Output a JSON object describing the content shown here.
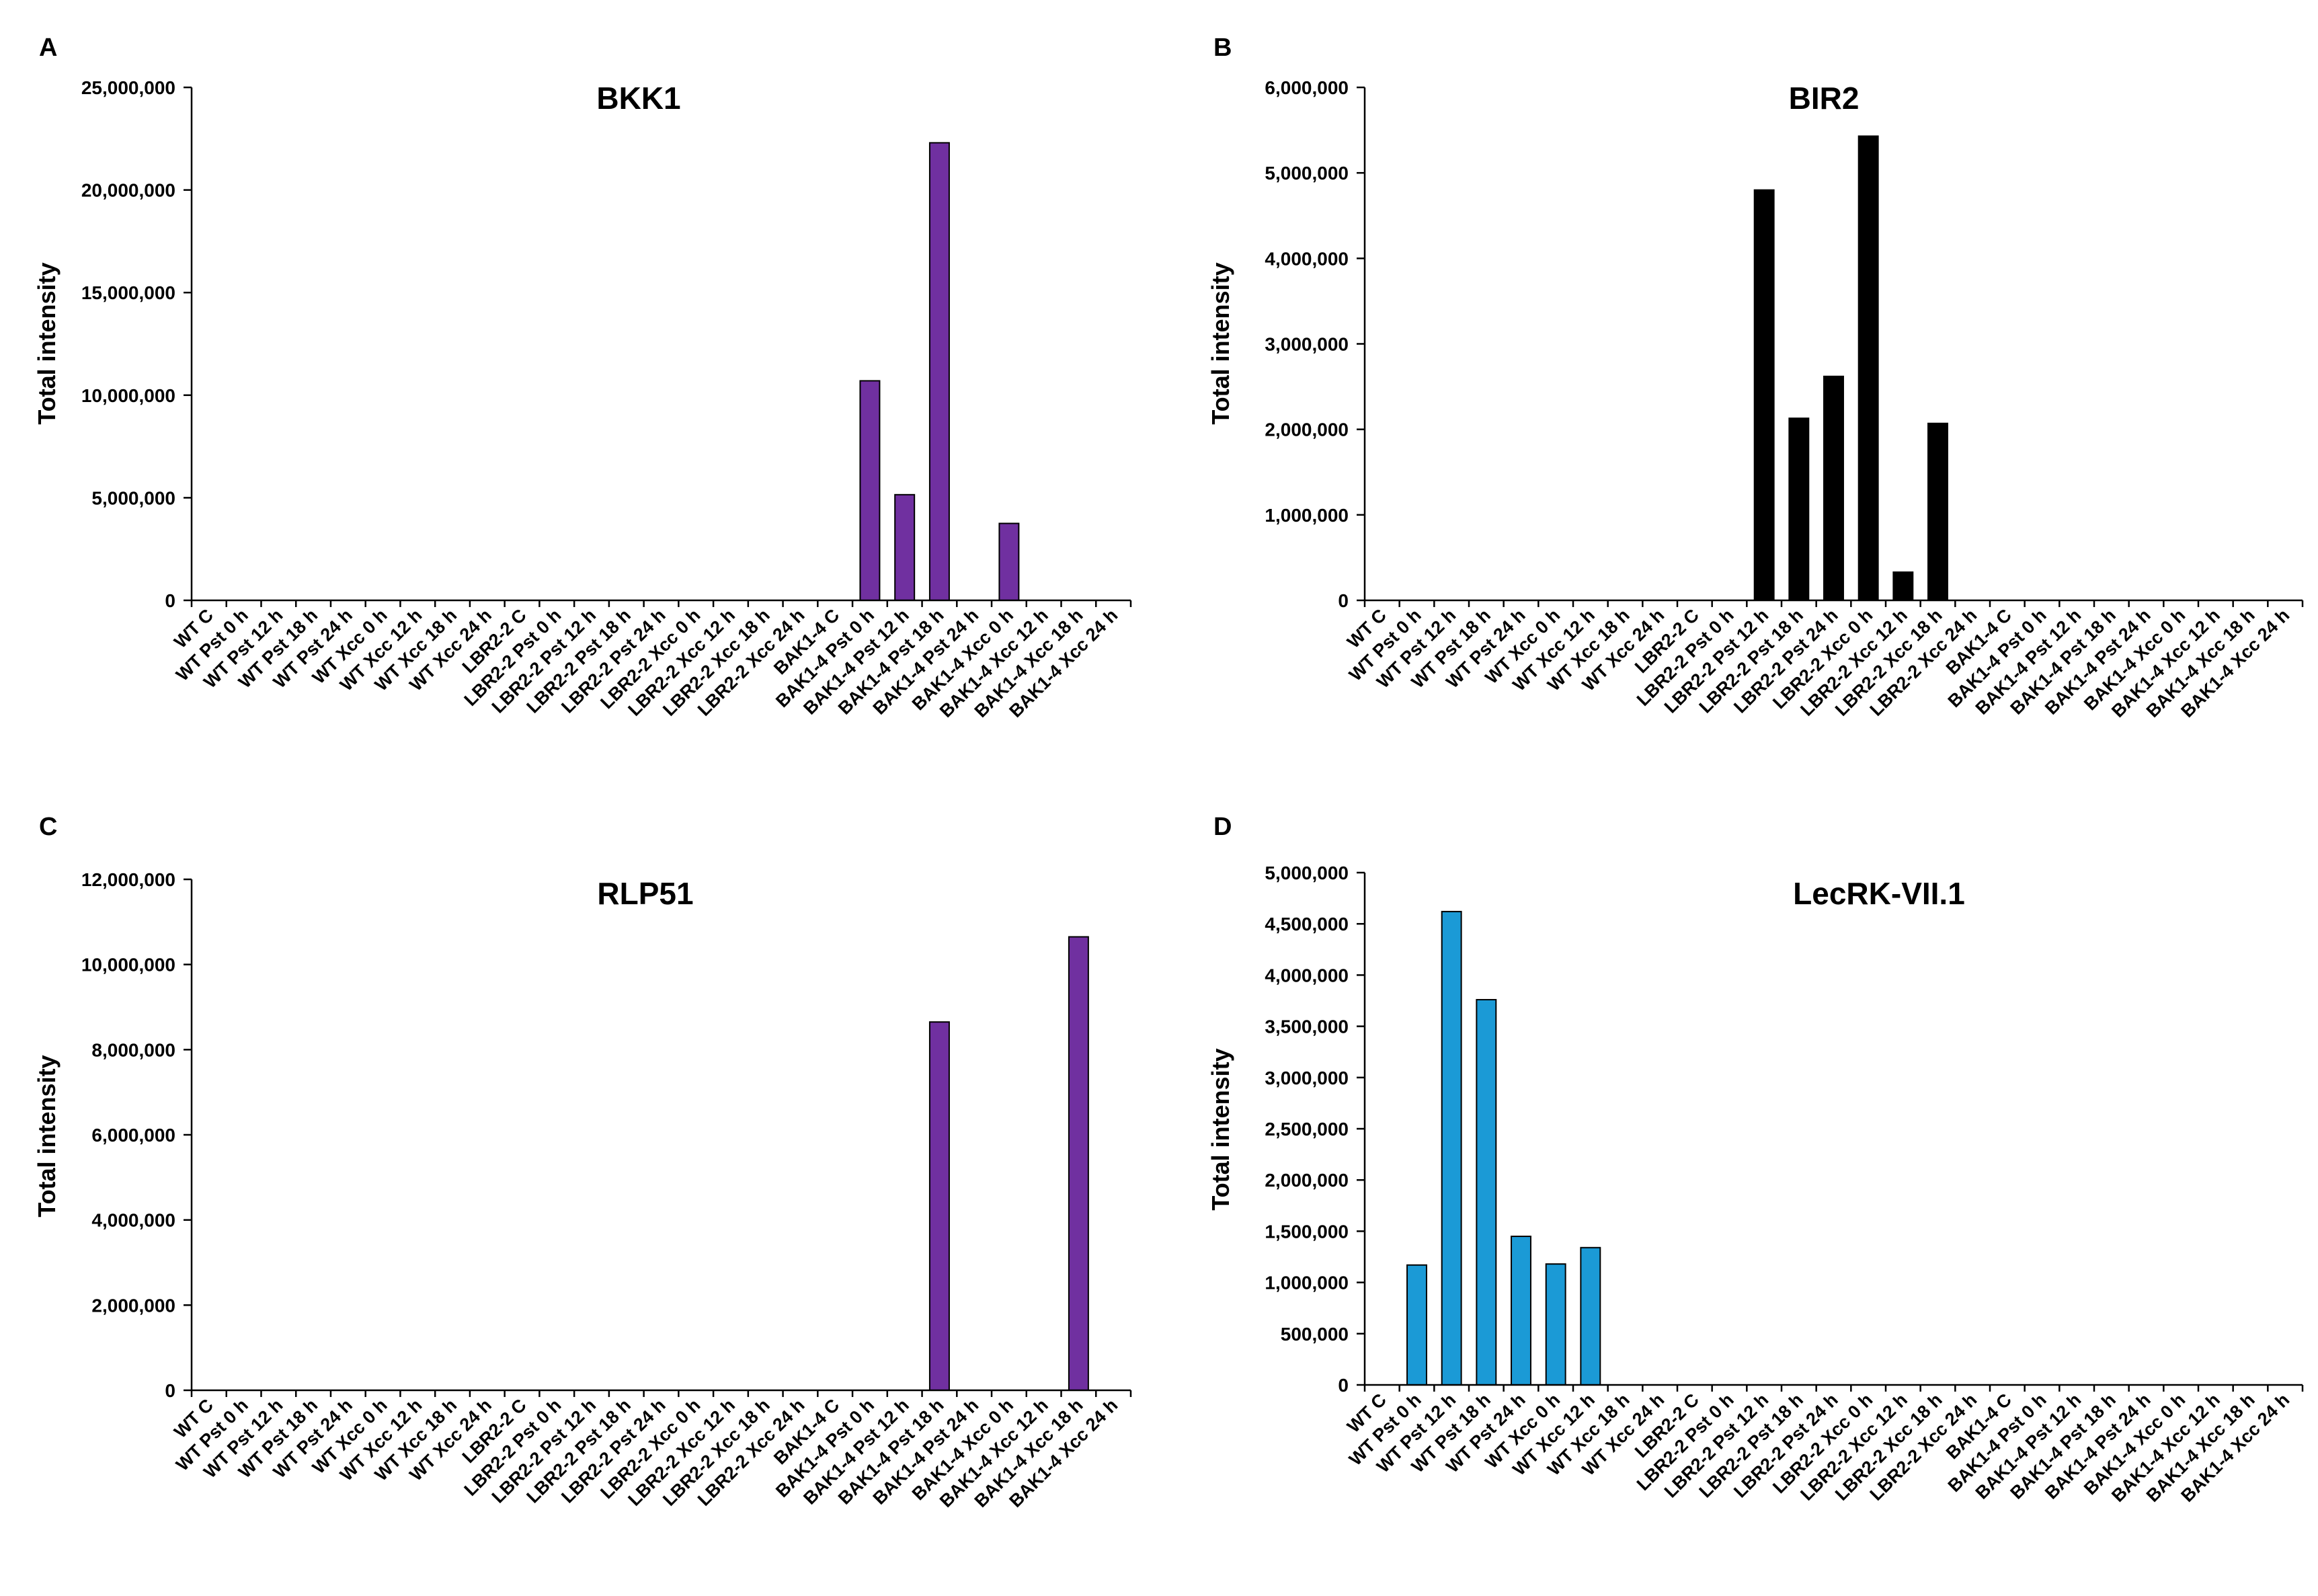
{
  "chart_data": [
    {
      "panel": "A",
      "type": "bar",
      "title": "BKK1",
      "ylabel": "Total intensity",
      "xlabel": "",
      "ylim": [
        0,
        25000000
      ],
      "yticks": [
        "0",
        "5,000,000",
        "10,000,000",
        "15,000,000",
        "20,000,000",
        "25,000,000"
      ],
      "color": "#7030a0",
      "categories": [
        "WT C",
        "WT Pst 0 h",
        "WT Pst 12 h",
        "WT Pst 18 h",
        "WT Pst 24 h",
        "WT Xcc 0 h",
        "WT Xcc 12 h",
        "WT Xcc 18 h",
        "WT Xcc 24 h",
        "LBR2-2 C",
        "LBR2-2 Pst 0 h",
        "LBR2-2 Pst 12 h",
        "LBR2-2 Pst 18 h",
        "LBR2-2 Pst 24 h",
        "LBR2-2 Xcc 0 h",
        "LBR2-2 Xcc 12 h",
        "LBR2-2 Xcc 18 h",
        "LBR2-2 Xcc 24 h",
        "BAK1-4 C",
        "BAK1-4 Pst 0 h",
        "BAK1-4 Pst 12 h",
        "BAK1-4 Pst 18 h",
        "BAK1-4 Pst 24 h",
        "BAK1-4 Xcc 0 h",
        "BAK1-4 Xcc 12 h",
        "BAK1-4 Xcc 18 h",
        "BAK1-4 Xcc 24 h"
      ],
      "values": [
        0,
        0,
        0,
        0,
        0,
        0,
        0,
        0,
        0,
        0,
        0,
        0,
        0,
        0,
        0,
        0,
        0,
        0,
        0,
        10700000,
        5150000,
        22300000,
        0,
        3750000,
        0,
        0,
        0
      ]
    },
    {
      "panel": "B",
      "type": "bar",
      "title": "BIR2",
      "ylabel": "Total intensity",
      "xlabel": "",
      "ylim": [
        0,
        6000000
      ],
      "yticks": [
        "0",
        "1,000,000",
        "2,000,000",
        "3,000,000",
        "4,000,000",
        "5,000,000",
        "6,000,000"
      ],
      "color": "#000000",
      "categories": [
        "WT C",
        "WT Pst 0 h",
        "WT Pst 12 h",
        "WT Pst 18 h",
        "WT Pst 24 h",
        "WT Xcc 0 h",
        "WT Xcc 12 h",
        "WT Xcc 18 h",
        "WT Xcc 24 h",
        "LBR2-2 C",
        "LBR2-2 Pst 0 h",
        "LBR2-2 Pst 12 h",
        "LBR2-2 Pst 18 h",
        "LBR2-2 Pst 24 h",
        "LBR2-2 Xcc 0 h",
        "LBR2-2 Xcc 12 h",
        "LBR2-2 Xcc 18 h",
        "LBR2-2 Xcc 24 h",
        "BAK1-4 C",
        "BAK1-4 Pst 0 h",
        "BAK1-4 Pst 12 h",
        "BAK1-4 Pst 18 h",
        "BAK1-4 Pst 24 h",
        "BAK1-4 Xcc 0 h",
        "BAK1-4 Xcc 12 h",
        "BAK1-4 Xcc 18 h",
        "BAK1-4 Xcc 24 h"
      ],
      "values": [
        0,
        0,
        0,
        0,
        0,
        0,
        0,
        0,
        0,
        0,
        0,
        4800000,
        2130000,
        2620000,
        5430000,
        330000,
        2070000,
        0,
        0,
        0,
        0,
        0,
        0,
        0,
        0,
        0,
        0
      ]
    },
    {
      "panel": "C",
      "type": "bar",
      "title": "RLP51",
      "ylabel": "Total intensity",
      "xlabel": "",
      "ylim": [
        0,
        12000000
      ],
      "yticks": [
        "0",
        "2,000,000",
        "4,000,000",
        "6,000,000",
        "8,000,000",
        "10,000,000",
        "12,000,000"
      ],
      "color": "#7030a0",
      "categories": [
        "WT C",
        "WT Pst 0 h",
        "WT Pst 12 h",
        "WT Pst 18 h",
        "WT Pst 24 h",
        "WT Xcc 0 h",
        "WT Xcc 12 h",
        "WT Xcc 18 h",
        "WT Xcc 24 h",
        "LBR2-2 C",
        "LBR2-2 Pst 0 h",
        "LBR2-2 Pst 12 h",
        "LBR2-2 Pst 18 h",
        "LBR2-2 Pst 24 h",
        "LBR2-2 Xcc 0 h",
        "LBR2-2 Xcc 12 h",
        "LBR2-2 Xcc 18 h",
        "LBR2-2 Xcc 24 h",
        "BAK1-4 C",
        "BAK1-4 Pst 0 h",
        "BAK1-4 Pst 12 h",
        "BAK1-4 Pst 18 h",
        "BAK1-4 Pst 24 h",
        "BAK1-4 Xcc 0 h",
        "BAK1-4 Xcc 12 h",
        "BAK1-4 Xcc 18 h",
        "BAK1-4 Xcc 24 h"
      ],
      "values": [
        0,
        0,
        0,
        0,
        0,
        0,
        0,
        0,
        0,
        0,
        0,
        0,
        0,
        0,
        0,
        0,
        0,
        0,
        0,
        0,
        0,
        8650000,
        0,
        0,
        0,
        10650000,
        0
      ]
    },
    {
      "panel": "D",
      "type": "bar",
      "title": "LecRK-VII.1",
      "ylabel": "Total intensity",
      "xlabel": "",
      "ylim": [
        0,
        5000000
      ],
      "yticks": [
        "0",
        "500,000",
        "1,000,000",
        "1,500,000",
        "2,000,000",
        "2,500,000",
        "3,000,000",
        "3,500,000",
        "4,000,000",
        "4,500,000",
        "5,000,000"
      ],
      "color": "#1b9ad6",
      "categories": [
        "WT C",
        "WT Pst 0 h",
        "WT Pst 12 h",
        "WT Pst 18 h",
        "WT Pst 24 h",
        "WT Xcc 0 h",
        "WT Xcc 12 h",
        "WT Xcc 18 h",
        "WT Xcc 24 h",
        "LBR2-2 C",
        "LBR2-2 Pst 0 h",
        "LBR2-2 Pst 12 h",
        "LBR2-2 Pst 18 h",
        "LBR2-2 Pst 24 h",
        "LBR2-2 Xcc 0 h",
        "LBR2-2 Xcc 12 h",
        "LBR2-2 Xcc 18 h",
        "LBR2-2 Xcc 24 h",
        "BAK1-4 C",
        "BAK1-4 Pst 0 h",
        "BAK1-4 Pst 12 h",
        "BAK1-4 Pst 18 h",
        "BAK1-4 Pst 24 h",
        "BAK1-4 Xcc 0 h",
        "BAK1-4 Xcc 12 h",
        "BAK1-4 Xcc 18 h",
        "BAK1-4 Xcc 24 h"
      ],
      "values": [
        0,
        1170000,
        4620000,
        3760000,
        1450000,
        1180000,
        1340000,
        0,
        0,
        0,
        0,
        0,
        0,
        0,
        0,
        0,
        0,
        0,
        0,
        0,
        0,
        0,
        0,
        0,
        0,
        0,
        0
      ]
    }
  ]
}
